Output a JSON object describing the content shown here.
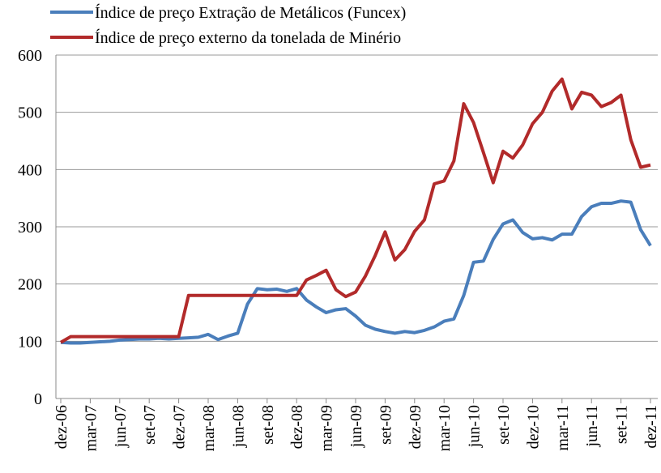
{
  "chart_data": {
    "type": "line",
    "categories": [
      "dez-06",
      null,
      null,
      "mar-07",
      null,
      null,
      "jun-07",
      null,
      null,
      "set-07",
      null,
      null,
      "dez-07",
      null,
      null,
      "mar-08",
      null,
      null,
      "jun-08",
      null,
      null,
      "set-08",
      null,
      null,
      "dez-08",
      null,
      null,
      "mar-09",
      null,
      null,
      "jun-09",
      null,
      null,
      "set-09",
      null,
      null,
      "dez-09",
      null,
      null,
      "mar-10",
      null,
      null,
      "jun-10",
      null,
      null,
      "set-10",
      null,
      null,
      "dez-10",
      null,
      null,
      "mar-11",
      null,
      null,
      "jun-11",
      null,
      null,
      "set-11",
      null,
      null,
      "dez-11"
    ],
    "series": [
      {
        "name": "Índice de preço Extração de Metálicos (Funcex)",
        "color": "#4a7ebb",
        "values": [
          98,
          97,
          97,
          98,
          99,
          100,
          102,
          103,
          104,
          104,
          105,
          104,
          105,
          106,
          107,
          112,
          103,
          109,
          114,
          165,
          192,
          190,
          191,
          187,
          192,
          172,
          160,
          150,
          155,
          157,
          144,
          128,
          121,
          117,
          114,
          117,
          115,
          119,
          125,
          135,
          139,
          180,
          238,
          240,
          278,
          305,
          312,
          290,
          279,
          281,
          277,
          287,
          287,
          318,
          335,
          341,
          341,
          345,
          343,
          295,
          267
        ]
      },
      {
        "name": "Índice de preço externo da tonelada de Minério",
        "color": "#b22a2a",
        "values": [
          98,
          108,
          108,
          108,
          108,
          108,
          108,
          108,
          108,
          108,
          108,
          108,
          108,
          180,
          180,
          180,
          180,
          180,
          180,
          180,
          180,
          180,
          180,
          180,
          180,
          207,
          215,
          224,
          190,
          178,
          186,
          214,
          250,
          291,
          242,
          260,
          292,
          312,
          375,
          380,
          415,
          515,
          482,
          430,
          377,
          432,
          420,
          443,
          480,
          500,
          537,
          558,
          506,
          535,
          530,
          510,
          517,
          530,
          452,
          404,
          408
        ]
      }
    ],
    "ylim": [
      0,
      600
    ],
    "yticks": [
      0,
      100,
      200,
      300,
      400,
      500,
      600
    ],
    "grid": true
  }
}
